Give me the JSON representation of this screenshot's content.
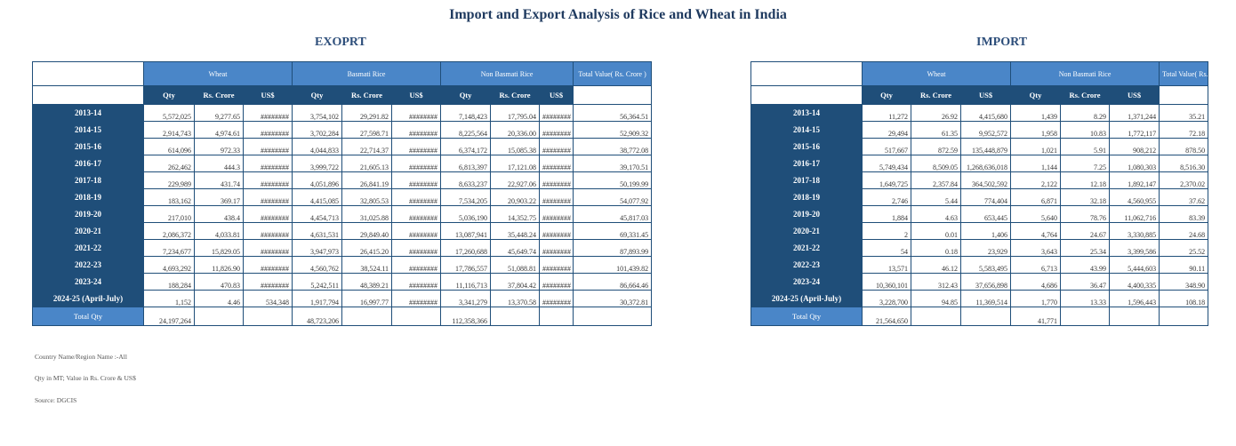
{
  "title": "Import and Export Analysis of Rice and Wheat in India",
  "export": {
    "section_title": "EXOPRT",
    "groups": {
      "wheat": "Wheat",
      "basmati": "Basmati Rice",
      "non_basmati": "Non Basmati Rice",
      "total_value": "Total Value( Rs. Crore )"
    },
    "sub": {
      "qty": "Qty",
      "crore": "Rs. Crore",
      "usd": "US$"
    },
    "total_label": "Total Qty",
    "rows": [
      [
        "2013-14",
        "5,572,025",
        "9,277.65",
        "########",
        "3,754,102",
        "29,291.82",
        "########",
        "7,148,423",
        "17,795.04",
        "########",
        "56,364.51"
      ],
      [
        "2014-15",
        "2,914,743",
        "4,974.61",
        "########",
        "3,702,284",
        "27,598.71",
        "########",
        "8,225,564",
        "20,336.00",
        "########",
        "52,909.32"
      ],
      [
        "2015-16",
        "614,096",
        "972.33",
        "########",
        "4,044,833",
        "22,714.37",
        "########",
        "6,374,172",
        "15,085.38",
        "########",
        "38,772.08"
      ],
      [
        "2016-17",
        "262,462",
        "444.3",
        "########",
        "3,999,722",
        "21,605.13",
        "########",
        "6,813,397",
        "17,121.08",
        "########",
        "39,170.51"
      ],
      [
        "2017-18",
        "229,989",
        "431.74",
        "########",
        "4,051,896",
        "26,841.19",
        "########",
        "8,633,237",
        "22,927.06",
        "########",
        "50,199.99"
      ],
      [
        "2018-19",
        "183,162",
        "369.17",
        "########",
        "4,415,085",
        "32,805.53",
        "########",
        "7,534,205",
        "20,903.22",
        "########",
        "54,077.92"
      ],
      [
        "2019-20",
        "217,010",
        "438.4",
        "########",
        "4,454,713",
        "31,025.88",
        "########",
        "5,036,190",
        "14,352.75",
        "########",
        "45,817.03"
      ],
      [
        "2020-21",
        "2,086,372",
        "4,033.81",
        "########",
        "4,631,531",
        "29,849.40",
        "########",
        "13,087,941",
        "35,448.24",
        "########",
        "69,331.45"
      ],
      [
        "2021-22",
        "7,234,677",
        "15,829.05",
        "########",
        "3,947,973",
        "26,415.20",
        "########",
        "17,260,688",
        "45,649.74",
        "########",
        "87,893.99"
      ],
      [
        "2022-23",
        "4,693,292",
        "11,826.90",
        "########",
        "4,560,762",
        "38,524.11",
        "########",
        "17,786,557",
        "51,088.81",
        "########",
        "101,439.82"
      ],
      [
        "2023-24",
        "188,284",
        "470.83",
        "########",
        "5,242,511",
        "48,389.21",
        "########",
        "11,116,713",
        "37,804.42",
        "########",
        "86,664.46"
      ],
      [
        "2024-25 (April-July)",
        "1,152",
        "4.46",
        "534,348",
        "1,917,794",
        "16,997.77",
        "########",
        "3,341,279",
        "13,370.58",
        "########",
        "30,372.81"
      ]
    ],
    "totals": [
      "24,197,264",
      "",
      "",
      "48,723,206",
      "",
      "",
      "112,358,366",
      "",
      "",
      ""
    ]
  },
  "import": {
    "section_title": "IMPORT",
    "groups": {
      "wheat": "Wheat",
      "non_basmati": "Non Basmati Rice",
      "total_value": "Total Value( Rs. Crore )"
    },
    "sub": {
      "qty": "Qty",
      "crore": "Rs. Crore",
      "usd": "US$"
    },
    "total_label": "Total Qty",
    "rows": [
      [
        "2013-14",
        "11,272",
        "26.92",
        "4,415,680",
        "1,439",
        "8.29",
        "1,371,244",
        "35.21"
      ],
      [
        "2014-15",
        "29,494",
        "61.35",
        "9,952,572",
        "1,958",
        "10.83",
        "1,772,117",
        "72.18"
      ],
      [
        "2015-16",
        "517,667",
        "872.59",
        "135,448,879",
        "1,021",
        "5.91",
        "908,212",
        "878.50"
      ],
      [
        "2016-17",
        "5,749,434",
        "8,509.05",
        "1,268,636,018",
        "1,144",
        "7.25",
        "1,080,303",
        "8,516.30"
      ],
      [
        "2017-18",
        "1,649,725",
        "2,357.84",
        "364,502,592",
        "2,122",
        "12.18",
        "1,892,147",
        "2,370.02"
      ],
      [
        "2018-19",
        "2,746",
        "5.44",
        "774,404",
        "6,871",
        "32.18",
        "4,560,955",
        "37.62"
      ],
      [
        "2019-20",
        "1,884",
        "4.63",
        "653,445",
        "5,640",
        "78.76",
        "11,062,716",
        "83.39"
      ],
      [
        "2020-21",
        "2",
        "0.01",
        "1,406",
        "4,764",
        "24.67",
        "3,330,885",
        "24.68"
      ],
      [
        "2021-22",
        "54",
        "0.18",
        "23,929",
        "3,643",
        "25.34",
        "3,399,586",
        "25.52"
      ],
      [
        "2022-23",
        "13,571",
        "46.12",
        "5,583,495",
        "6,713",
        "43.99",
        "5,444,603",
        "90.11"
      ],
      [
        "2023-24",
        "10,360,101",
        "312.43",
        "37,656,898",
        "4,686",
        "36.47",
        "4,400,335",
        "348.90"
      ],
      [
        "2024-25 (April-July)",
        "3,228,700",
        "94.85",
        "11,369,514",
        "1,770",
        "13.33",
        "1,596,443",
        "108.18"
      ]
    ],
    "totals": [
      "21,564,650",
      "",
      "",
      "41,771",
      "",
      "",
      ""
    ]
  },
  "notes": [
    "Country Name/Region Name :-All",
    "Qty in MT; Value in Rs. Crore & US$",
    "Source: DGCIS"
  ]
}
